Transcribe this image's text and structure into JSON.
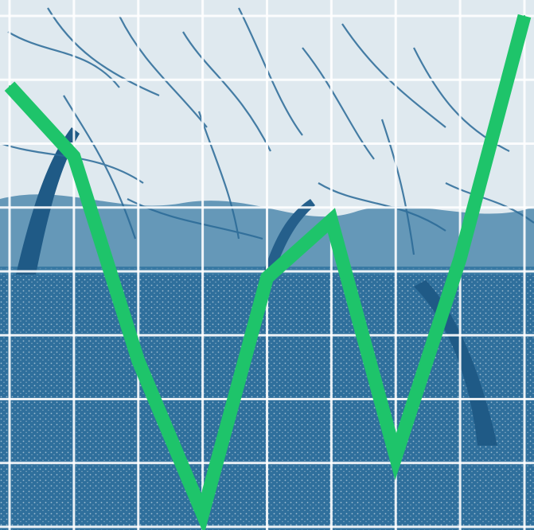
{
  "colors": {
    "background": "#f4f7f8",
    "photo_blue": "#2f6f9c",
    "photo_dark": "#1f5a86",
    "grid": "#ffffff",
    "line": "#1ec46a"
  },
  "chart_data": {
    "type": "line",
    "title": "",
    "xlabel": "",
    "ylabel": "",
    "grid": true,
    "legend": "none",
    "x": [
      0,
      1,
      2,
      3,
      4,
      5,
      6,
      7,
      8
    ],
    "ylim": [
      0,
      8
    ],
    "series": [
      {
        "values": [
          6.9,
          5.8,
          2.6,
          0.2,
          3.9,
          4.8,
          1.1,
          4.2,
          8.0
        ]
      }
    ]
  }
}
